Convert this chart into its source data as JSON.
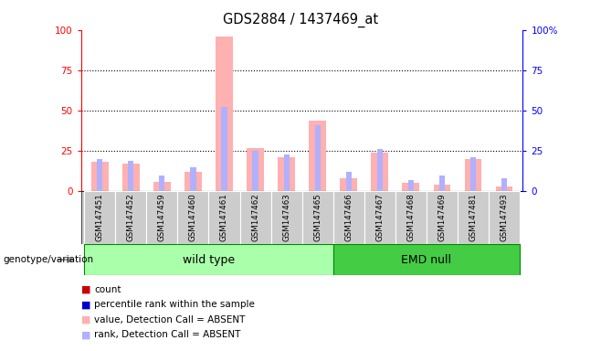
{
  "title": "GDS2884 / 1437469_at",
  "samples": [
    "GSM147451",
    "GSM147452",
    "GSM147459",
    "GSM147460",
    "GSM147461",
    "GSM147462",
    "GSM147463",
    "GSM147465",
    "GSM147466",
    "GSM147467",
    "GSM147468",
    "GSM147469",
    "GSM147481",
    "GSM147493"
  ],
  "count_values": [
    18,
    17,
    6,
    12,
    96,
    27,
    21,
    44,
    8,
    24,
    5,
    4,
    20,
    3
  ],
  "rank_values": [
    20,
    19,
    10,
    15,
    52,
    25,
    23,
    41,
    12,
    26,
    7,
    10,
    21,
    8
  ],
  "wild_type_indices": [
    0,
    1,
    2,
    3,
    4,
    5,
    6,
    7
  ],
  "emd_null_indices": [
    8,
    9,
    10,
    11,
    12,
    13
  ],
  "count_color_absent": "#ffb0b0",
  "rank_color_absent": "#b0b0ff",
  "ylim": [
    0,
    100
  ],
  "yticks": [
    0,
    25,
    50,
    75,
    100
  ],
  "ytick_labels_left": [
    "0",
    "25",
    "50",
    "75",
    "100"
  ],
  "ytick_labels_right": [
    "0",
    "25",
    "50",
    "75",
    "100%"
  ],
  "background_color": "#ffffff",
  "xticklabel_bg": "#cccccc",
  "wt_bg": "#aaffaa",
  "emd_bg": "#44cc44",
  "legend_items": [
    {
      "label": "count",
      "color": "#cc0000"
    },
    {
      "label": "percentile rank within the sample",
      "color": "#0000cc"
    },
    {
      "label": "value, Detection Call = ABSENT",
      "color": "#ffb0b0"
    },
    {
      "label": "rank, Detection Call = ABSENT",
      "color": "#b0b0ff"
    }
  ],
  "genotype_label": "genotype/variation",
  "wt_label": "wild type",
  "emd_label": "EMD null"
}
